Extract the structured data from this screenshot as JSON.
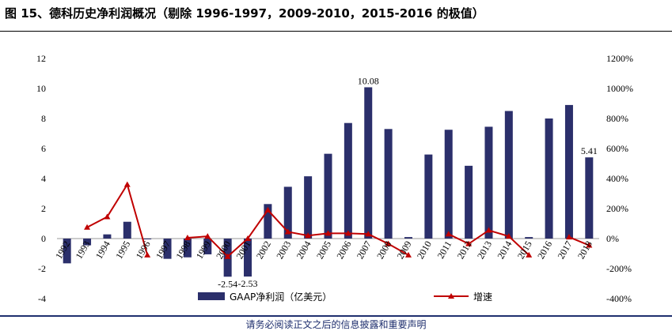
{
  "header": {
    "title": "图 15、德科历史净利润概况（剔除 1996-1997，2009-2010，2015-2016 的极值）"
  },
  "footer": {
    "text": "请务必阅读正文之后的信息披露和重要声明"
  },
  "chart_data": {
    "type": "bar",
    "categories": [
      "1992",
      "1993",
      "1994",
      "1995",
      "1996",
      "1997",
      "1998",
      "1999",
      "2000",
      "2001",
      "2002",
      "2003",
      "2004",
      "2005",
      "2006",
      "2007",
      "2008",
      "2009",
      "2010",
      "2011",
      "2012",
      "2013",
      "2014",
      "2015",
      "2016",
      "2017",
      "2018"
    ],
    "series": [
      {
        "name": "GAAP净利润（亿美元）",
        "type": "bar",
        "axis": "left",
        "color": "#2b2f6b",
        "values": [
          -1.65,
          -0.45,
          0.28,
          1.12,
          -0.05,
          -1.35,
          -1.25,
          -1.05,
          -2.54,
          -2.53,
          2.3,
          3.45,
          4.15,
          5.65,
          7.7,
          10.08,
          7.3,
          0.1,
          5.6,
          7.25,
          4.85,
          7.45,
          8.5,
          0.1,
          8.0,
          8.9,
          5.41
        ]
      },
      {
        "name": "增速",
        "type": "line",
        "axis": "right",
        "color": "#c00000",
        "unit": "%",
        "values": [
          null,
          75,
          145,
          360,
          -110,
          null,
          5,
          15,
          -120,
          0,
          190,
          45,
          20,
          35,
          35,
          30,
          -35,
          -110,
          null,
          30,
          -35,
          55,
          15,
          -110,
          null,
          10,
          -45
        ]
      }
    ],
    "data_labels": [
      {
        "category": "2000",
        "text": "-2.54"
      },
      {
        "category": "2001",
        "text": "-2.53"
      },
      {
        "category": "2007",
        "text": "10.08"
      },
      {
        "category": "2018",
        "text": "5.41"
      }
    ],
    "y_left": {
      "ticks": [
        "12",
        "10",
        "8",
        "6",
        "4",
        "2",
        "0",
        "-2",
        "-4"
      ],
      "ylim": [
        -4,
        12
      ]
    },
    "y_right": {
      "ticks": [
        "1200%",
        "1000%",
        "800%",
        "600%",
        "400%",
        "200%",
        "0%",
        "-200%",
        "-400%"
      ],
      "ylim": [
        -400,
        1200
      ]
    },
    "legend": {
      "position": "bottom"
    },
    "grid": false
  }
}
